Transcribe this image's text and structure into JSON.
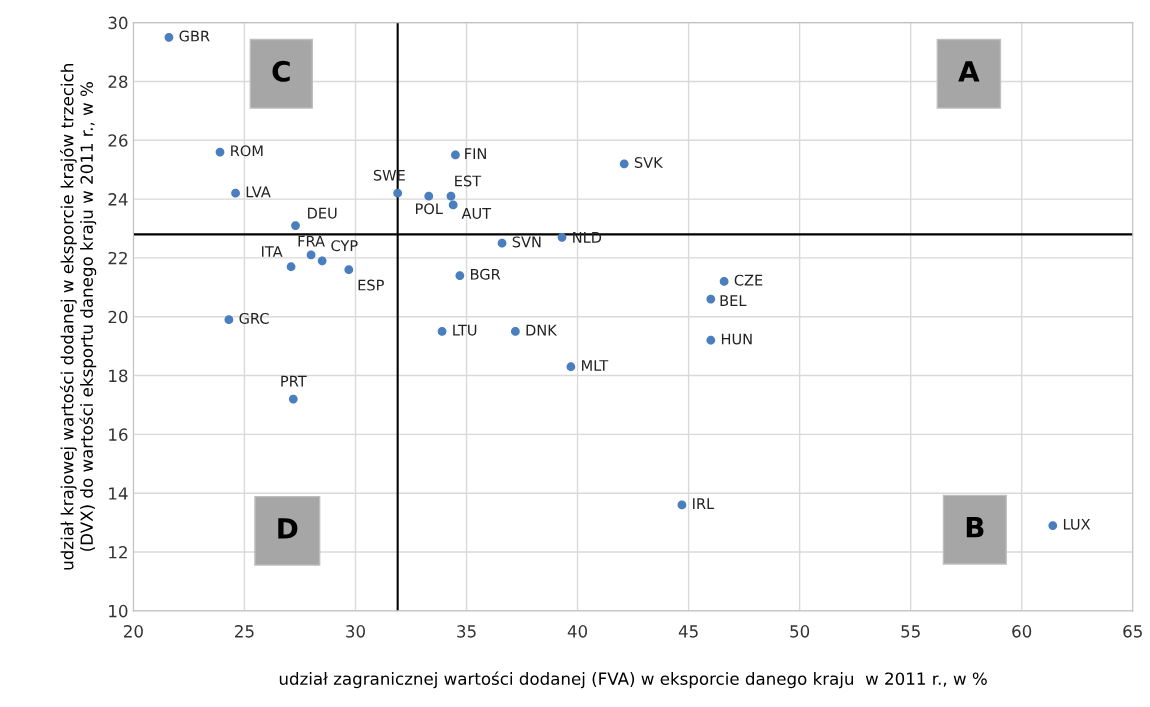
{
  "chart_data": {
    "type": "scatter",
    "xlabel": "udział zagranicznej wartości dodanej (FVA) w eksporcie danego kraju  w 2011 r., w %",
    "ylabel": "udział krajowej wartości dodanej w eksporcie krajów trzecich\n(DVX) do wartości eksportu danego kraju w 2011 r., w %",
    "xlim": [
      20,
      65
    ],
    "xticks": [
      20,
      25,
      30,
      35,
      40,
      45,
      50,
      55,
      60,
      65
    ],
    "ylim": [
      10,
      30
    ],
    "yticks": [
      10,
      12,
      14,
      16,
      18,
      20,
      22,
      24,
      26,
      28,
      30
    ],
    "grid": true,
    "legend": false,
    "marker": "circle",
    "ref_lines": [
      {
        "axis": "x",
        "value": 31.9,
        "color": "#000000"
      },
      {
        "axis": "y",
        "value": 22.8,
        "color": "#000000"
      }
    ],
    "annotations": [
      "C",
      "A",
      "D",
      "B"
    ],
    "series": [
      {
        "name": "GBR",
        "color": "#4a7ebf",
        "x": [
          21.6
        ],
        "values": [
          29.5
        ]
      },
      {
        "name": "ROM",
        "color": "#4a7ebf",
        "x": [
          23.9
        ],
        "values": [
          25.6
        ]
      },
      {
        "name": "LVA",
        "color": "#4a7ebf",
        "x": [
          24.6
        ],
        "values": [
          24.2
        ]
      },
      {
        "name": "DEU",
        "color": "#4a7ebf",
        "x": [
          27.3
        ],
        "values": [
          23.1
        ]
      },
      {
        "name": "ITA",
        "color": "#4a7ebf",
        "x": [
          27.1
        ],
        "values": [
          21.7
        ]
      },
      {
        "name": "FRA",
        "color": "#4a7ebf",
        "x": [
          28.0
        ],
        "values": [
          22.1
        ]
      },
      {
        "name": "CYP",
        "color": "#4a7ebf",
        "x": [
          28.5
        ],
        "values": [
          21.9
        ]
      },
      {
        "name": "ESP",
        "color": "#4a7ebf",
        "x": [
          29.7
        ],
        "values": [
          21.6
        ]
      },
      {
        "name": "GRC",
        "color": "#4a7ebf",
        "x": [
          24.3
        ],
        "values": [
          19.9
        ]
      },
      {
        "name": "PRT",
        "color": "#4a7ebf",
        "x": [
          27.2
        ],
        "values": [
          17.2
        ]
      },
      {
        "name": "SWE",
        "color": "#4a7ebf",
        "x": [
          31.9
        ],
        "values": [
          24.2
        ]
      },
      {
        "name": "POL",
        "color": "#4a7ebf",
        "x": [
          33.3
        ],
        "values": [
          24.1
        ]
      },
      {
        "name": "EST",
        "color": "#4a7ebf",
        "x": [
          34.3
        ],
        "values": [
          24.1
        ]
      },
      {
        "name": "AUT",
        "color": "#4a7ebf",
        "x": [
          34.4
        ],
        "values": [
          23.8
        ]
      },
      {
        "name": "FIN",
        "color": "#4a7ebf",
        "x": [
          34.5
        ],
        "values": [
          25.5
        ]
      },
      {
        "name": "SVN",
        "color": "#4a7ebf",
        "x": [
          36.6
        ],
        "values": [
          22.5
        ]
      },
      {
        "name": "NLD",
        "color": "#4a7ebf",
        "x": [
          39.3
        ],
        "values": [
          22.7
        ]
      },
      {
        "name": "BGR",
        "color": "#4a7ebf",
        "x": [
          34.7
        ],
        "values": [
          21.4
        ]
      },
      {
        "name": "LTU",
        "color": "#4a7ebf",
        "x": [
          33.9
        ],
        "values": [
          19.5
        ]
      },
      {
        "name": "DNK",
        "color": "#4a7ebf",
        "x": [
          37.2
        ],
        "values": [
          19.5
        ]
      },
      {
        "name": "MLT",
        "color": "#4a7ebf",
        "x": [
          39.7
        ],
        "values": [
          18.3
        ]
      },
      {
        "name": "SVK",
        "color": "#4a7ebf",
        "x": [
          42.1
        ],
        "values": [
          25.2
        ]
      },
      {
        "name": "CZE",
        "color": "#4a7ebf",
        "x": [
          46.6
        ],
        "values": [
          21.2
        ]
      },
      {
        "name": "BEL",
        "color": "#4a7ebf",
        "x": [
          46.0
        ],
        "values": [
          20.6
        ]
      },
      {
        "name": "HUN",
        "color": "#4a7ebf",
        "x": [
          46.0
        ],
        "values": [
          19.2
        ]
      },
      {
        "name": "IRL",
        "color": "#4a7ebf",
        "x": [
          44.7
        ],
        "values": [
          13.6
        ]
      },
      {
        "name": "LUX",
        "color": "#4a7ebf",
        "x": [
          61.4
        ],
        "values": [
          12.9
        ]
      }
    ]
  }
}
